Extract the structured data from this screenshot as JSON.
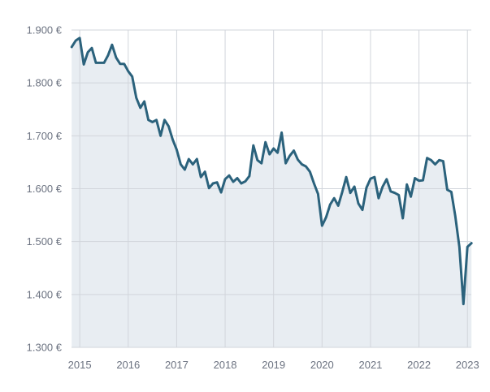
{
  "chart_data": {
    "type": "area",
    "title": "",
    "xlabel": "",
    "ylabel": "",
    "ylim": [
      1300,
      1900
    ],
    "xlim": [
      2014.83,
      2023.08
    ],
    "grid": "on",
    "legend": "none",
    "colors": {
      "line": "#2b627c",
      "fill": "#e8edf2",
      "grid": "#d1d5db",
      "tick_text": "#6b7280"
    },
    "x_ticks": [
      {
        "value": 2015,
        "label": "2015"
      },
      {
        "value": 2016,
        "label": "2016"
      },
      {
        "value": 2017,
        "label": "2017"
      },
      {
        "value": 2018,
        "label": "2018"
      },
      {
        "value": 2019,
        "label": "2019"
      },
      {
        "value": 2020,
        "label": "2020"
      },
      {
        "value": 2021,
        "label": "2021"
      },
      {
        "value": 2022,
        "label": "2022"
      },
      {
        "value": 2023,
        "label": "2023"
      }
    ],
    "y_ticks": [
      {
        "value": 1300,
        "label": "1.300 €"
      },
      {
        "value": 1400,
        "label": "1.400 €"
      },
      {
        "value": 1500,
        "label": "1.500 €"
      },
      {
        "value": 1600,
        "label": "1.600 €"
      },
      {
        "value": 1700,
        "label": "1.700 €"
      },
      {
        "value": 1800,
        "label": "1.800 €"
      },
      {
        "value": 1900,
        "label": "1.900 €"
      }
    ],
    "series": [
      {
        "x": [
          2014.833,
          2014.917,
          2015.0,
          2015.083,
          2015.167,
          2015.25,
          2015.333,
          2015.417,
          2015.5,
          2015.583,
          2015.667,
          2015.75,
          2015.833,
          2015.917,
          2016.0,
          2016.083,
          2016.167,
          2016.25,
          2016.333,
          2016.417,
          2016.5,
          2016.583,
          2016.667,
          2016.75,
          2016.833,
          2016.917,
          2017.0,
          2017.083,
          2017.167,
          2017.25,
          2017.333,
          2017.417,
          2017.5,
          2017.583,
          2017.667,
          2017.75,
          2017.833,
          2017.917,
          2018.0,
          2018.083,
          2018.167,
          2018.25,
          2018.333,
          2018.417,
          2018.5,
          2018.583,
          2018.667,
          2018.75,
          2018.833,
          2018.917,
          2019.0,
          2019.083,
          2019.167,
          2019.25,
          2019.333,
          2019.417,
          2019.5,
          2019.583,
          2019.667,
          2019.75,
          2019.833,
          2019.917,
          2020.0,
          2020.083,
          2020.167,
          2020.25,
          2020.333,
          2020.417,
          2020.5,
          2020.583,
          2020.667,
          2020.75,
          2020.833,
          2020.917,
          2021.0,
          2021.083,
          2021.167,
          2021.25,
          2021.333,
          2021.417,
          2021.5,
          2021.583,
          2021.667,
          2021.75,
          2021.833,
          2021.917,
          2022.0,
          2022.083,
          2022.167,
          2022.25,
          2022.333,
          2022.417,
          2022.5,
          2022.583,
          2022.667,
          2022.75,
          2022.833,
          2022.917,
          2023.0,
          2023.083
        ],
        "values": [
          1868,
          1880,
          1885,
          1835,
          1858,
          1866,
          1838,
          1838,
          1838,
          1852,
          1872,
          1848,
          1836,
          1836,
          1822,
          1812,
          1772,
          1753,
          1765,
          1730,
          1726,
          1730,
          1700,
          1730,
          1718,
          1693,
          1674,
          1646,
          1636,
          1656,
          1646,
          1656,
          1622,
          1632,
          1601,
          1610,
          1612,
          1593,
          1618,
          1625,
          1613,
          1620,
          1610,
          1614,
          1624,
          1682,
          1654,
          1648,
          1688,
          1665,
          1676,
          1668,
          1706,
          1648,
          1662,
          1672,
          1655,
          1646,
          1642,
          1632,
          1610,
          1590,
          1530,
          1546,
          1570,
          1582,
          1568,
          1594,
          1622,
          1592,
          1604,
          1572,
          1560,
          1602,
          1619,
          1622,
          1582,
          1604,
          1618,
          1595,
          1592,
          1588,
          1544,
          1608,
          1585,
          1620,
          1615,
          1616,
          1658,
          1654,
          1646,
          1654,
          1652,
          1598,
          1594,
          1548,
          1490,
          1382,
          1490,
          1497
        ]
      }
    ]
  }
}
